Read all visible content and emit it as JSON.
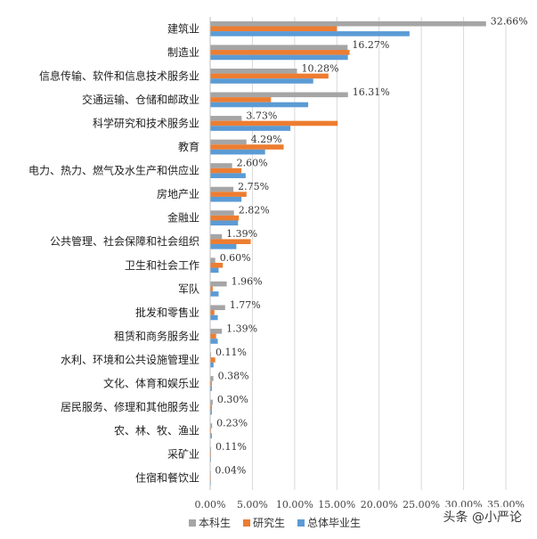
{
  "chart_data": {
    "type": "bar",
    "orientation": "horizontal",
    "categories": [
      "建筑业",
      "制造业",
      "信息传输、软件和信息技术服务业",
      "交通运输、仓储和邮政业",
      "科学研究和技术服务业",
      "教育",
      "电力、热力、燃气及水生产和供应业",
      "房地产业",
      "金融业",
      "公共管理、社会保障和社会组织",
      "卫生和社会工作",
      "军队",
      "批发和零售业",
      "租赁和商务服务业",
      "水利、环境和公共设施管理业",
      "文化、体育和娱乐业",
      "居民服务、修理和其他服务业",
      "农、林、牧、渔业",
      "采矿业",
      "住宿和餐饮业"
    ],
    "series": [
      {
        "name": "本科生",
        "color": "#a5a5a5",
        "values": [
          32.66,
          16.27,
          10.28,
          16.31,
          3.73,
          4.29,
          2.6,
          2.75,
          2.82,
          1.39,
          0.6,
          1.96,
          1.77,
          1.39,
          0.11,
          0.38,
          0.3,
          0.23,
          0.11,
          0.04
        ],
        "labels": [
          "32.66%",
          "16.27%",
          "10.28%",
          "16.31%",
          "3.73%",
          "4.29%",
          "2.60%",
          "2.75%",
          "2.82%",
          "1.39%",
          "0.60%",
          "1.96%",
          "1.77%",
          "1.39%",
          "0.11%",
          "0.38%",
          "0.30%",
          "0.23%",
          "0.11%",
          "0.04%"
        ]
      },
      {
        "name": "研究生",
        "color": "#ed7d31",
        "values": [
          15.0,
          16.5,
          14.0,
          7.2,
          15.1,
          8.7,
          3.7,
          4.3,
          3.4,
          4.8,
          1.5,
          0.3,
          0.5,
          0.7,
          0.6,
          0.2,
          0.2,
          0.1,
          0.1,
          0.05
        ]
      },
      {
        "name": "总体毕业生",
        "color": "#5b9bd5",
        "values": [
          23.6,
          16.3,
          12.2,
          11.6,
          9.5,
          6.5,
          4.2,
          3.7,
          3.3,
          3.1,
          1.0,
          1.0,
          0.9,
          0.9,
          0.4,
          0.2,
          0.2,
          0.2,
          0.1,
          0.05
        ]
      }
    ],
    "x_ticks": [
      "0.00%",
      "5.00%",
      "10.00%",
      "15.00%",
      "20.00%",
      "25.00%",
      "30.00%",
      "35.00%"
    ],
    "xlim": [
      0,
      35
    ],
    "xlabel": "",
    "ylabel": "",
    "grid": "vertical",
    "legend": "bottom"
  },
  "watermark": "头条 @小严论"
}
